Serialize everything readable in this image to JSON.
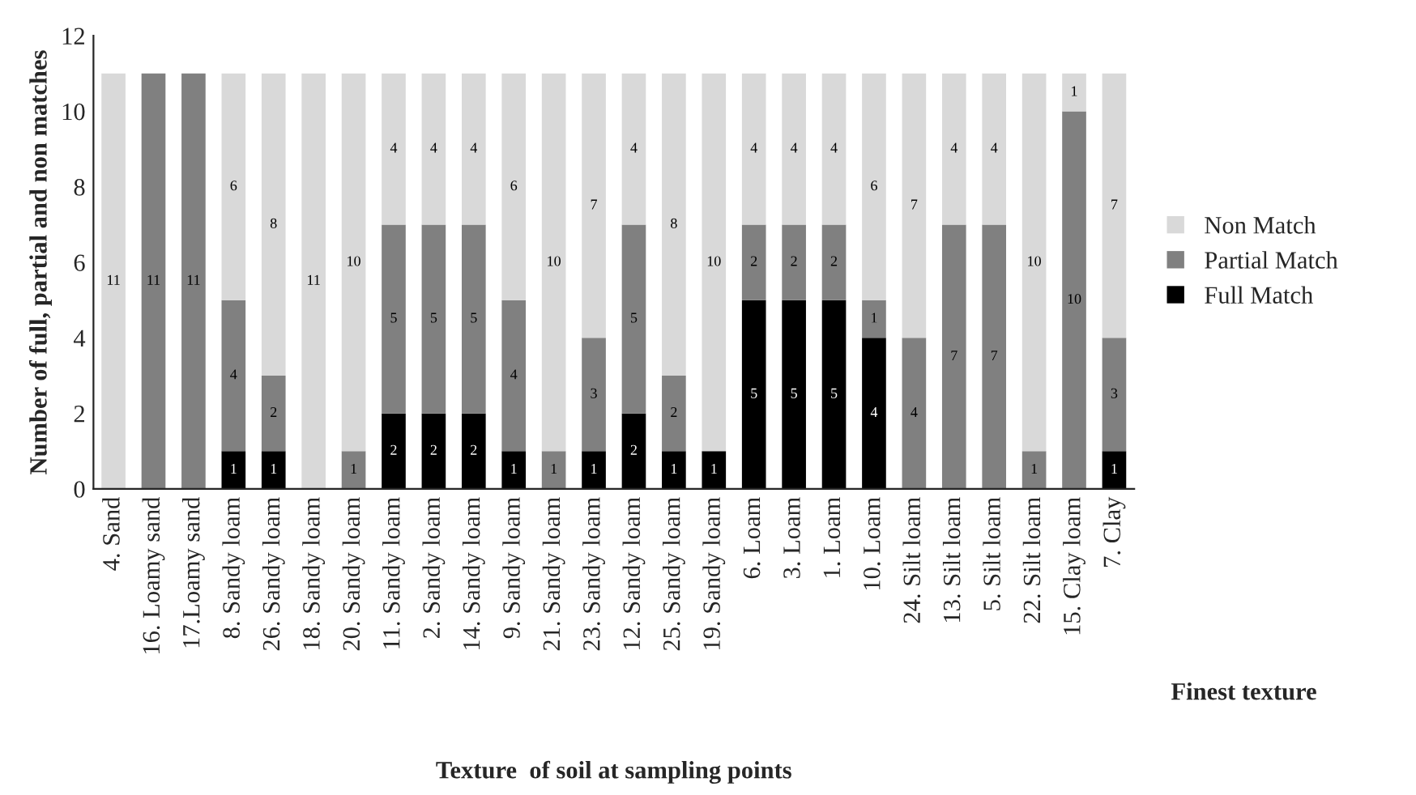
{
  "chart_data": {
    "type": "bar",
    "stacked": true,
    "xlabel": "Texture  of soil at sampling points",
    "ylabel": "Number of full, partial and non matches",
    "categories": [
      "4. Sand",
      "16. Loamy sand",
      "17.Loamy sand",
      "8. Sandy loam",
      "26. Sandy loam",
      "18. Sandy loam",
      "20. Sandy loam",
      "11. Sandy loam",
      "2. Sandy loam",
      "14. Sandy loam",
      "9. Sandy loam",
      "21. Sandy loam",
      "23. Sandy loam",
      "12. Sandy loam",
      "25. Sandy loam",
      "19. Sandy loam",
      "6. Loam",
      "3. Loam",
      "1. Loam",
      "10. Loam",
      "24. Silt loam",
      "13. Silt loam",
      "5. Silt loam",
      "22. Silt loam",
      "15. Clay loam",
      "7. Clay"
    ],
    "series": [
      {
        "name": "Full Match",
        "color": "#000000",
        "values": [
          0,
          0,
          0,
          1,
          1,
          0,
          0,
          2,
          2,
          2,
          1,
          0,
          1,
          2,
          1,
          1,
          5,
          5,
          5,
          4,
          0,
          0,
          0,
          0,
          0,
          1
        ],
        "value_labels": [
          null,
          null,
          null,
          "1",
          "1",
          null,
          null,
          "2",
          "2",
          "2",
          "1",
          null,
          "1",
          "2",
          "1",
          "1",
          "5",
          "5",
          "5",
          "4",
          null,
          null,
          null,
          null,
          null,
          "1"
        ]
      },
      {
        "name": "Partial Match",
        "color": "#808080",
        "values": [
          0,
          11,
          11,
          4,
          2,
          0,
          1,
          5,
          5,
          5,
          4,
          1,
          3,
          5,
          2,
          0,
          2,
          2,
          2,
          1,
          4,
          7,
          7,
          1,
          10,
          3
        ],
        "value_labels": [
          null,
          "11",
          "11",
          "4",
          "2",
          null,
          "1",
          "5",
          "5",
          "5",
          "4",
          "1",
          "3",
          "5",
          "2",
          null,
          "2",
          "2",
          "2",
          "1",
          "4",
          "7",
          "7",
          "1",
          "10",
          "3"
        ]
      },
      {
        "name": "Non Match",
        "color": "#d9d9d9",
        "values": [
          11,
          0,
          0,
          6,
          8,
          11,
          10,
          4,
          4,
          4,
          6,
          10,
          7,
          4,
          8,
          10,
          4,
          4,
          4,
          6,
          7,
          4,
          4,
          10,
          1,
          7
        ],
        "value_labels": [
          "11",
          null,
          null,
          "6",
          "8",
          "11",
          "10",
          "4",
          "4",
          "4",
          "6",
          "10",
          "7",
          "4",
          "8",
          "10",
          "4",
          "4",
          "4",
          "6",
          "7",
          "4",
          "4",
          "10",
          "1",
          "7"
        ]
      }
    ],
    "ylim": [
      0,
      12
    ],
    "yticks": [
      0,
      2,
      4,
      6,
      8,
      10,
      12
    ],
    "legend": "right",
    "annotations": [
      "Finest texture"
    ]
  }
}
